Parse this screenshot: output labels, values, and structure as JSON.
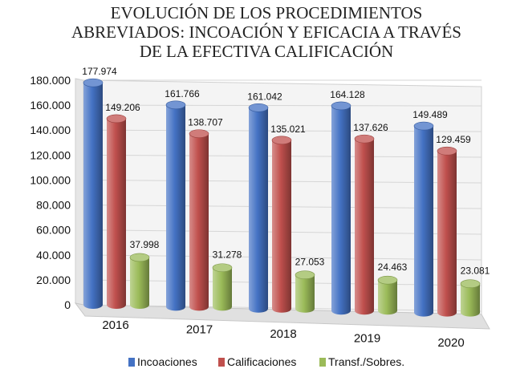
{
  "chart_data": {
    "type": "bar",
    "title": [
      "EVOLUCIÓN DE LOS PROCEDIMIENTOS",
      "ABREVIADOS: INCOACIÓN Y EFICACIA A TRAVÉS",
      "DE LA EFECTIVA CALIFICACIÓN"
    ],
    "categories": [
      "2016",
      "2017",
      "2018",
      "2019",
      "2020"
    ],
    "series": [
      {
        "name": "Incoaciones",
        "color": "#4472c4",
        "values": [
          177974,
          161766,
          161042,
          164128,
          149489
        ],
        "labels": [
          "177.974",
          "161.766",
          "161.042",
          "164.128",
          "149.489"
        ]
      },
      {
        "name": "Calificaciones",
        "color": "#c0504d",
        "values": [
          149206,
          138707,
          135021,
          137626,
          129459
        ],
        "labels": [
          "149.206",
          "138.707",
          "135.021",
          "137.626",
          "129.459"
        ]
      },
      {
        "name": "Transf./Sobres.",
        "color": "#9bbb59",
        "values": [
          37998,
          31278,
          27053,
          24463,
          23081
        ],
        "labels": [
          "37.998",
          "31.278",
          "27.053",
          "24.463",
          "23.081"
        ]
      }
    ],
    "yticks": [
      0,
      20000,
      40000,
      60000,
      80000,
      100000,
      120000,
      140000,
      160000,
      180000
    ],
    "ytick_labels": [
      "0",
      "20.000",
      "40.000",
      "60.000",
      "80.000",
      "100.000",
      "120.000",
      "140.000",
      "160.000",
      "180.000"
    ],
    "ylim": [
      0,
      180000
    ],
    "legend": "bottom",
    "grid": true
  }
}
